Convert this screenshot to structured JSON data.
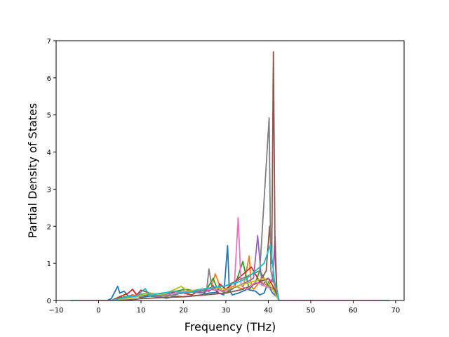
{
  "chart_data": {
    "type": "line",
    "title": "",
    "xlabel": "Frequency (THz)",
    "ylabel": "Partial Density of States",
    "xlim": [
      -10,
      72
    ],
    "ylim": [
      0,
      7
    ],
    "xticks": [
      -10,
      0,
      10,
      20,
      30,
      40,
      50,
      60,
      70
    ],
    "xtick_labels": [
      "−10",
      "0",
      "10",
      "20",
      "30",
      "40",
      "50",
      "60",
      "70"
    ],
    "yticks": [
      0,
      1,
      2,
      3,
      4,
      5,
      6,
      7
    ],
    "ytick_labels": [
      "0",
      "1",
      "2",
      "3",
      "4",
      "5",
      "6",
      "7"
    ],
    "grid": false,
    "legend": "none",
    "series": [
      {
        "color": "#1f77b4",
        "x": [
          -6.6,
          2,
          3,
          4.5,
          5,
          6,
          7,
          8,
          10,
          12,
          14,
          16,
          18,
          20,
          22,
          24,
          26,
          28,
          29.5,
          30.4,
          30.8,
          31.5,
          33,
          35,
          37,
          38,
          39,
          40,
          40.5,
          41,
          42,
          42.5,
          68.5
        ],
        "y": [
          0,
          0,
          0.05,
          0.38,
          0.2,
          0.25,
          0.12,
          0.15,
          0.08,
          0.12,
          0.1,
          0.06,
          0.12,
          0.1,
          0.12,
          0.15,
          0.2,
          0.22,
          0.15,
          1.48,
          0.3,
          0.15,
          0.2,
          0.3,
          0.25,
          0.15,
          0.2,
          0.5,
          0.3,
          0.2,
          0.1,
          0,
          0
        ]
      },
      {
        "color": "#ff7f0e",
        "x": [
          -6.6,
          3,
          6,
          9,
          12,
          15,
          18,
          21,
          24,
          26.5,
          27.5,
          29,
          31,
          32,
          34,
          35.5,
          36,
          36.5,
          38,
          40,
          41,
          42,
          42.5,
          68.5
        ],
        "y": [
          0,
          0,
          0.1,
          0.15,
          0.2,
          0.15,
          0.25,
          0.3,
          0.2,
          0.3,
          0.72,
          0.25,
          0.35,
          0.4,
          0.3,
          1.2,
          0.4,
          0.3,
          0.5,
          0.4,
          0.6,
          0.2,
          0,
          0
        ]
      },
      {
        "color": "#2ca02c",
        "x": [
          -6.6,
          3,
          5,
          8,
          11,
          14,
          17,
          20,
          23,
          25,
          27,
          28,
          30,
          32,
          34,
          35.5,
          37,
          38,
          40,
          41.5,
          42.5,
          68.5
        ],
        "y": [
          0,
          0,
          0.08,
          0.12,
          0.18,
          0.15,
          0.2,
          0.3,
          0.25,
          0.2,
          0.6,
          0.3,
          0.2,
          0.35,
          1.05,
          0.3,
          0.5,
          0.8,
          0.4,
          0.3,
          0,
          0
        ]
      },
      {
        "color": "#d62728",
        "x": [
          -6.6,
          3,
          5,
          7,
          8,
          9,
          10,
          12,
          14,
          16,
          18,
          20,
          22,
          24,
          26,
          27,
          28,
          28.5,
          30,
          32,
          34,
          36,
          38,
          40,
          41.5,
          42.5,
          68.5
        ],
        "y": [
          0,
          0,
          0.1,
          0.2,
          0.3,
          0.15,
          0.28,
          0.2,
          0.15,
          0.12,
          0.25,
          0.2,
          0.15,
          0.3,
          0.25,
          0.4,
          0.2,
          0.45,
          0.3,
          0.5,
          0.7,
          0.9,
          0.5,
          0.6,
          0.3,
          0,
          0
        ]
      },
      {
        "color": "#9467bd",
        "x": [
          -6.6,
          3,
          6,
          9,
          12,
          15,
          18,
          21,
          24,
          27,
          30,
          33,
          35,
          36.5,
          37.5,
          38.5,
          40,
          41,
          41.6,
          42,
          42.5,
          68.5
        ],
        "y": [
          0,
          0,
          0.05,
          0.1,
          0.15,
          0.12,
          0.2,
          0.25,
          0.2,
          0.3,
          0.25,
          0.4,
          0.5,
          0.6,
          1.75,
          0.4,
          0.6,
          0.5,
          1.72,
          0.3,
          0,
          0
        ]
      },
      {
        "color": "#8c564b",
        "x": [
          -6.6,
          5,
          10,
          15,
          20,
          25,
          30,
          34,
          36,
          38,
          39.5,
          40.3,
          40.8,
          41.2,
          41.6,
          42,
          42.5,
          68.5
        ],
        "y": [
          0,
          0,
          0.05,
          0.08,
          0.1,
          0.15,
          0.2,
          0.3,
          0.4,
          0.5,
          0.8,
          2.0,
          1.0,
          6.7,
          1.2,
          0.3,
          0,
          0
        ]
      },
      {
        "color": "#e377c2",
        "x": [
          -6.6,
          3,
          6,
          10,
          14,
          18,
          22,
          26,
          30,
          32,
          32.9,
          33.6,
          35,
          37,
          39,
          41,
          42.5,
          68.5
        ],
        "y": [
          0,
          0,
          0.08,
          0.15,
          0.12,
          0.2,
          0.25,
          0.3,
          0.25,
          0.4,
          2.23,
          0.4,
          0.3,
          0.5,
          0.4,
          0.3,
          0,
          0
        ]
      },
      {
        "color": "#7f7f7f",
        "x": [
          -6.6,
          4,
          8,
          12,
          16,
          20,
          24,
          25.5,
          26,
          26.8,
          28,
          30,
          32,
          34,
          36,
          38,
          40.2,
          40.6,
          41,
          42,
          42.5,
          68.5
        ],
        "y": [
          0,
          0,
          0.1,
          0.15,
          0.12,
          0.2,
          0.25,
          0.3,
          0.85,
          0.3,
          0.35,
          0.4,
          0.5,
          0.6,
          0.7,
          0.8,
          4.92,
          0.8,
          0.6,
          0.3,
          0,
          0
        ]
      },
      {
        "color": "#bcbd22",
        "x": [
          -6.6,
          3,
          6,
          9,
          12,
          15,
          18,
          19.5,
          21,
          24,
          27,
          30,
          33,
          36,
          39,
          41,
          42.5,
          68.5
        ],
        "y": [
          0,
          0,
          0.05,
          0.1,
          0.2,
          0.15,
          0.3,
          0.38,
          0.25,
          0.3,
          0.35,
          0.3,
          0.4,
          0.5,
          0.6,
          0.3,
          0,
          0
        ]
      },
      {
        "color": "#17becf",
        "x": [
          -6.6,
          3,
          6,
          9,
          11,
          12,
          15,
          18,
          21,
          24,
          27,
          30,
          33,
          35,
          37,
          39,
          40.5,
          41.5,
          42.5,
          68.5
        ],
        "y": [
          0,
          0,
          0.08,
          0.12,
          0.32,
          0.15,
          0.2,
          0.25,
          0.2,
          0.3,
          0.35,
          0.4,
          0.5,
          0.6,
          0.8,
          1.0,
          1.5,
          0.5,
          0,
          0
        ]
      }
    ]
  }
}
